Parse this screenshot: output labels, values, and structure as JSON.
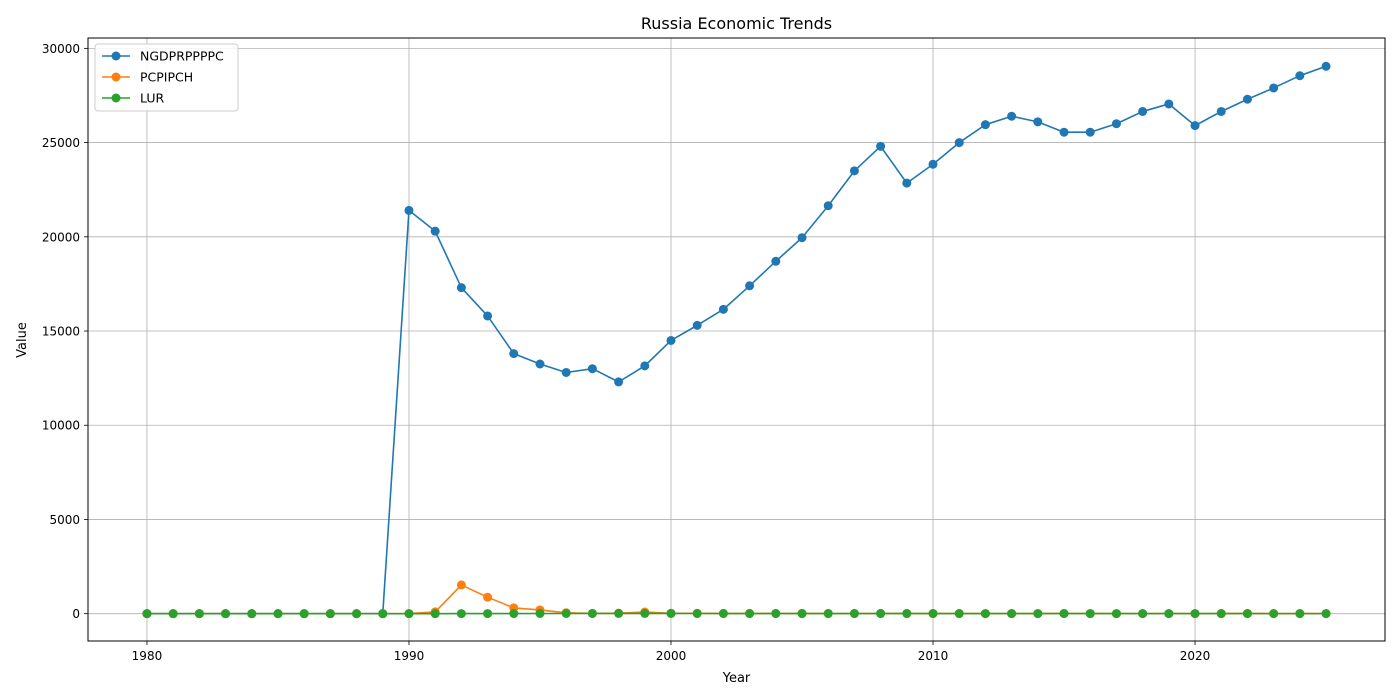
{
  "chart_data": {
    "type": "line",
    "title": "Russia Economic Trends",
    "xlabel": "Year",
    "ylabel": "Value",
    "xlim": [
      1977.75,
      2027.25
    ],
    "ylim": [
      -1450,
      30550
    ],
    "xticks": [
      1980,
      1990,
      2000,
      2010,
      2020
    ],
    "yticks": [
      0,
      5000,
      10000,
      15000,
      20000,
      25000,
      30000
    ],
    "grid": true,
    "legend_position": "top-left",
    "x": [
      1980,
      1981,
      1982,
      1983,
      1984,
      1985,
      1986,
      1987,
      1988,
      1989,
      1990,
      1991,
      1992,
      1993,
      1994,
      1995,
      1996,
      1997,
      1998,
      1999,
      2000,
      2001,
      2002,
      2003,
      2004,
      2005,
      2006,
      2007,
      2008,
      2009,
      2010,
      2011,
      2012,
      2013,
      2014,
      2015,
      2016,
      2017,
      2018,
      2019,
      2020,
      2021,
      2022,
      2023,
      2024,
      2025
    ],
    "series": [
      {
        "name": "NGDPRPPPPC",
        "color": "#1f77b4",
        "values": [
          0,
          0,
          0,
          0,
          0,
          0,
          0,
          0,
          0,
          0,
          21400,
          20300,
          17300,
          15800,
          13800,
          13250,
          12800,
          13000,
          12300,
          13150,
          14500,
          15300,
          16150,
          17400,
          18700,
          19950,
          21650,
          23500,
          24800,
          22850,
          23850,
          25000,
          25950,
          26400,
          26100,
          25550,
          25550,
          26000,
          26650,
          27050,
          25900,
          26650,
          27300,
          27900,
          28550,
          29050
        ]
      },
      {
        "name": "PCPIPCH",
        "color": "#ff7f0e",
        "values": [
          0,
          0,
          0,
          0,
          0,
          0,
          0,
          0,
          0,
          0,
          5.6,
          92.7,
          1526,
          875,
          307,
          198,
          48,
          15,
          28,
          86,
          21,
          22,
          16,
          14,
          11,
          13,
          10,
          9,
          14,
          12,
          7,
          8,
          5,
          7,
          8,
          16,
          7,
          4,
          3,
          4,
          3,
          7,
          14,
          6,
          8,
          7
        ]
      },
      {
        "name": "LUR",
        "color": "#2ca02c",
        "values": [
          0,
          0,
          0,
          0,
          0,
          0,
          0,
          0,
          0,
          0,
          0,
          0,
          5.2,
          5.9,
          8.1,
          9.4,
          9.7,
          11.8,
          13.3,
          13,
          10.6,
          9,
          7.9,
          8.2,
          7.8,
          7.1,
          7.1,
          6,
          6.2,
          8.3,
          7.3,
          6.5,
          5.5,
          5.5,
          5.2,
          5.6,
          5.5,
          5.2,
          4.8,
          4.6,
          5.8,
          4.8,
          3.9,
          3.2,
          2.5,
          2.7
        ]
      }
    ]
  }
}
